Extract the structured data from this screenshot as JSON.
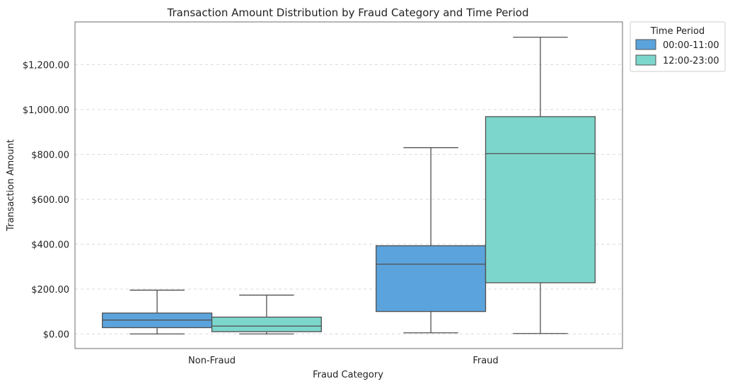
{
  "chart_data": {
    "type": "boxplot",
    "title": "Transaction Amount Distribution by Fraud Category and Time Period",
    "xlabel": "Fraud Category",
    "ylabel": "Transaction Amount",
    "ylim": [
      -65,
      1390
    ],
    "yticks": [
      0,
      200,
      400,
      600,
      800,
      1000,
      1200
    ],
    "ytick_labels": [
      "$0.00",
      "$200.00",
      "$400.00",
      "$600.00",
      "$800.00",
      "$1,000.00",
      "$1,200.00"
    ],
    "categories": [
      "Non-Fraud",
      "Fraud"
    ],
    "grid": "y-dashed",
    "legend": {
      "title": "Time Period",
      "placement": "outside-top-right"
    },
    "series": [
      {
        "name": "00:00-11:00",
        "color": "#5ba3dc",
        "boxes": [
          {
            "min": 0,
            "q1": 28,
            "median": 62,
            "q3": 93,
            "max": 195
          },
          {
            "min": 5,
            "q1": 100,
            "median": 311,
            "q3": 393,
            "max": 830
          }
        ]
      },
      {
        "name": "12:00-23:00",
        "color": "#7dd6cc",
        "boxes": [
          {
            "min": 0,
            "q1": 10,
            "median": 35,
            "q3": 75,
            "max": 173
          },
          {
            "min": 2,
            "q1": 228,
            "median": 803,
            "q3": 968,
            "max": 1322
          }
        ]
      }
    ]
  }
}
